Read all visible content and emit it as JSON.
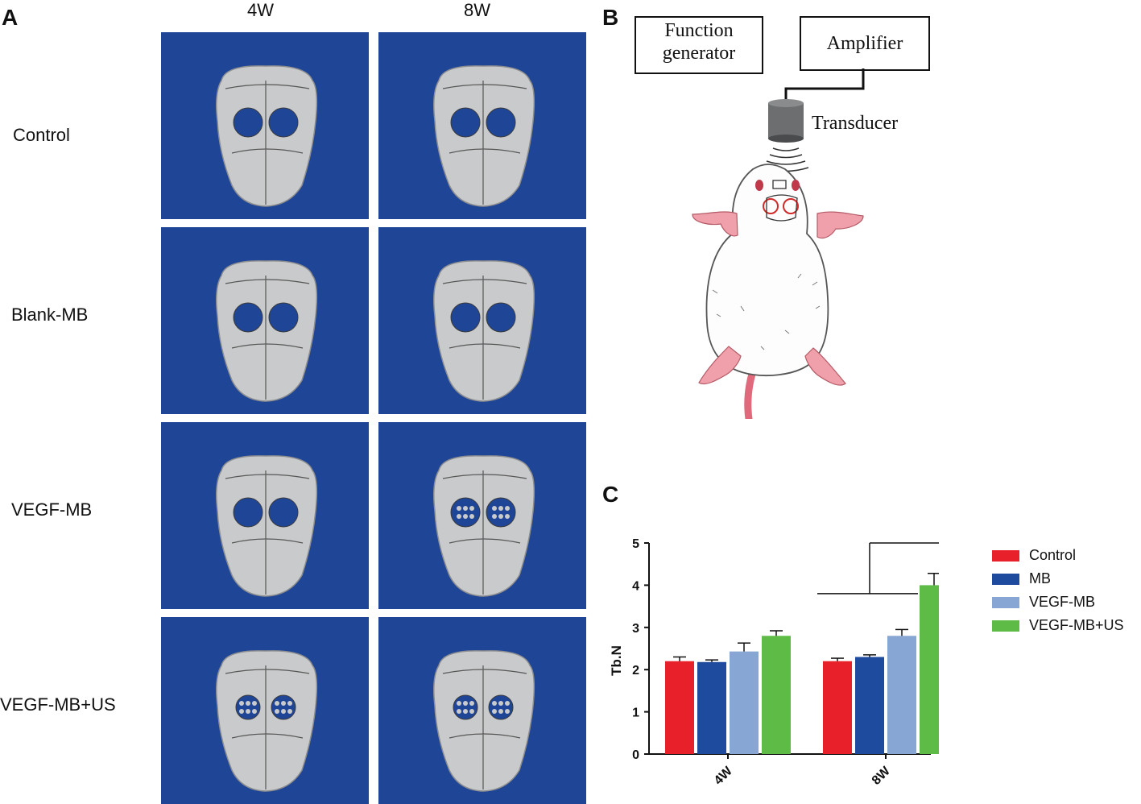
{
  "panel_letters": {
    "a": "A",
    "b": "B",
    "c": "C"
  },
  "column_headers": [
    "4W",
    "8W"
  ],
  "row_labels": [
    "Control",
    "Blank-MB",
    "VEGF-MB",
    "VEGF-MB+US"
  ],
  "schematic": {
    "function_generator": "Function\ngenerator",
    "function_generator_line1": "Function",
    "function_generator_line2": "generator",
    "amplifier": "Amplifier",
    "transducer": "Transducer"
  },
  "colors": {
    "control": "#e8202a",
    "mb": "#1f4b9e",
    "vegf_mb": "#87a6d3",
    "vegf_mb_us": "#5dbb46",
    "ct_background": "#1f4596",
    "bone": "#c9cacb"
  },
  "chart_data": {
    "type": "bar",
    "categories": [
      "4W",
      "8W"
    ],
    "series": [
      {
        "name": "Control",
        "values": [
          2.2,
          2.2
        ],
        "errors": [
          0.1,
          0.07
        ]
      },
      {
        "name": "MB",
        "values": [
          2.18,
          2.3
        ],
        "errors": [
          0.05,
          0.05
        ]
      },
      {
        "name": "VEGF-MB",
        "values": [
          2.43,
          2.8
        ],
        "errors": [
          0.2,
          0.15
        ]
      },
      {
        "name": "VEGF-MB+US",
        "values": [
          2.8,
          4.0
        ],
        "errors": [
          0.12,
          0.28
        ]
      }
    ],
    "ylabel": "Tb.N",
    "xlabel": "",
    "ylim": [
      0,
      5
    ],
    "yticks": [
      "0",
      "1",
      "2",
      "3",
      "4",
      "5"
    ],
    "significance": "*",
    "legend_position": "right",
    "grid": false
  }
}
